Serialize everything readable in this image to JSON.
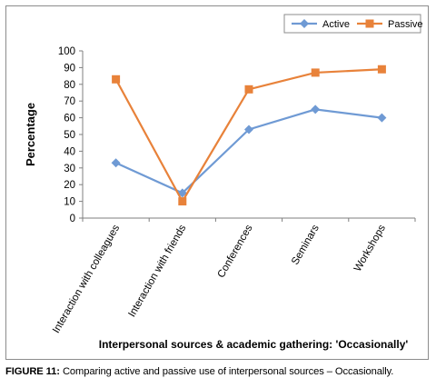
{
  "chart_data": {
    "type": "line",
    "categories": [
      "Interaction with colleagues",
      "Interaction with friends",
      "Conferences",
      "Seminars",
      "Workshops"
    ],
    "series": [
      {
        "name": "Active",
        "values": [
          33,
          15,
          53,
          65,
          60
        ],
        "color": "#6f9ad4",
        "marker": "diamond"
      },
      {
        "name": "Passive",
        "values": [
          83,
          10,
          77,
          87,
          89
        ],
        "color": "#e8823a",
        "marker": "square"
      }
    ],
    "ylabel": "Percentage",
    "xlabel": "Interpersonal sources & academic gathering: 'Occasionally'",
    "ylim": [
      0,
      100
    ],
    "yticks": [
      0,
      10,
      20,
      30,
      40,
      50,
      60,
      70,
      80,
      90,
      100
    ],
    "grid": false,
    "legend_position": "top-right"
  },
  "caption": {
    "label": "FIGURE 11:",
    "text": " Comparing active and passive use of interpersonal sources – Occasionally."
  }
}
